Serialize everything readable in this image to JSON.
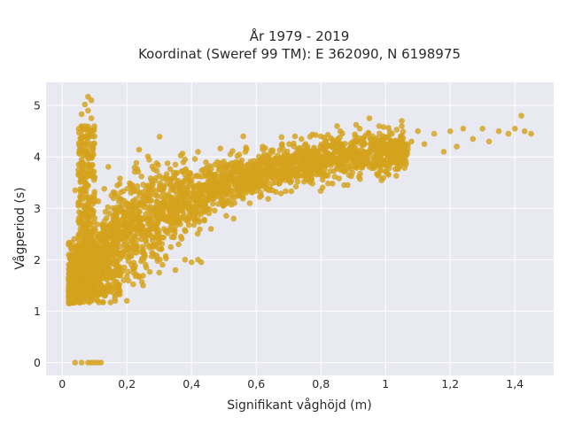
{
  "chart_data": {
    "type": "scatter",
    "title_line1": "År 1979 - 2019",
    "title_line2": "Koordinat (Sweref 99 TM): E 362090, N 6198975",
    "xlabel": "Signifikant våghöjd (m)",
    "ylabel": "Vågperiod (s)",
    "xlim": [
      -0.05,
      1.52
    ],
    "ylim": [
      -0.25,
      5.45
    ],
    "x_ticks": [
      0,
      0.2,
      0.4,
      0.6,
      0.8,
      1,
      1.2,
      1.4
    ],
    "x_tick_labels": [
      "0",
      "0,2",
      "0,4",
      "0,6",
      "0,8",
      "1",
      "1,2",
      "1,4"
    ],
    "y_ticks": [
      0,
      1,
      2,
      3,
      4,
      5
    ],
    "y_tick_labels": [
      "0",
      "1",
      "2",
      "3",
      "4",
      "5"
    ],
    "grid": true,
    "marker_color": "#d4a21c",
    "plot_background": "#e9e9f1",
    "grid_color": "#ffffff",
    "points": [
      [
        0.04,
        0.0
      ],
      [
        0.06,
        0.0
      ],
      [
        0.08,
        0.0
      ],
      [
        0.09,
        0.0
      ],
      [
        0.1,
        0.0
      ],
      [
        0.12,
        0.0
      ],
      [
        0.11,
        0.0
      ],
      [
        0.08,
        5.17
      ],
      [
        0.09,
        5.1
      ],
      [
        0.07,
        5.02
      ],
      [
        0.08,
        4.9
      ],
      [
        0.06,
        4.83
      ],
      [
        0.09,
        4.75
      ],
      [
        0.07,
        4.6
      ],
      [
        0.08,
        4.45
      ],
      [
        0.06,
        4.35
      ],
      [
        0.09,
        4.25
      ],
      [
        0.07,
        4.1
      ],
      [
        0.06,
        3.95
      ],
      [
        0.08,
        3.8
      ],
      [
        0.05,
        3.65
      ],
      [
        0.07,
        3.5
      ],
      [
        0.06,
        3.35
      ],
      [
        0.08,
        3.2
      ],
      [
        0.05,
        3.05
      ],
      [
        0.07,
        2.9
      ],
      [
        0.06,
        2.75
      ],
      [
        0.09,
        2.55
      ],
      [
        0.05,
        2.4
      ],
      [
        0.07,
        2.25
      ],
      [
        0.04,
        3.35
      ],
      [
        0.05,
        3.1
      ],
      [
        0.06,
        4.2
      ],
      [
        0.09,
        4.0
      ],
      [
        0.1,
        3.6
      ],
      [
        0.1,
        4.4
      ],
      [
        0.02,
        1.6
      ],
      [
        0.02,
        1.45
      ],
      [
        0.03,
        1.25
      ],
      [
        0.04,
        1.75
      ],
      [
        0.03,
        1.55
      ],
      [
        0.05,
        1.3
      ],
      [
        0.05,
        1.95
      ],
      [
        0.06,
        2.2
      ],
      [
        0.07,
        1.4
      ],
      [
        0.08,
        1.2
      ],
      [
        0.08,
        1.7
      ],
      [
        0.09,
        2.0
      ],
      [
        0.1,
        1.35
      ],
      [
        0.1,
        2.3
      ],
      [
        0.11,
        1.55
      ],
      [
        0.12,
        1.9
      ],
      [
        0.12,
        2.5
      ],
      [
        0.13,
        1.3
      ],
      [
        0.14,
        1.65
      ],
      [
        0.15,
        2.15
      ],
      [
        0.15,
        2.7
      ],
      [
        0.16,
        1.45
      ],
      [
        0.17,
        1.8
      ],
      [
        0.18,
        2.4
      ],
      [
        0.18,
        2.95
      ],
      [
        0.19,
        1.6
      ],
      [
        0.2,
        2.05
      ],
      [
        0.2,
        3.1
      ],
      [
        0.21,
        2.5
      ],
      [
        0.22,
        1.75
      ],
      [
        0.23,
        2.8
      ],
      [
        0.24,
        3.3
      ],
      [
        0.25,
        2.2
      ],
      [
        0.26,
        1.85
      ],
      [
        0.27,
        2.6
      ],
      [
        0.28,
        3.45
      ],
      [
        0.29,
        2.95
      ],
      [
        0.3,
        2.4
      ],
      [
        0.31,
        1.9
      ],
      [
        0.32,
        3.6
      ],
      [
        0.33,
        3.1
      ],
      [
        0.34,
        2.7
      ],
      [
        0.35,
        3.85
      ],
      [
        0.36,
        2.3
      ],
      [
        0.37,
        3.3
      ],
      [
        0.38,
        2.0
      ],
      [
        0.38,
        3.95
      ],
      [
        0.4,
        3.5
      ],
      [
        0.41,
        2.9
      ],
      [
        0.42,
        4.1
      ],
      [
        0.43,
        1.95
      ],
      [
        0.44,
        3.7
      ],
      [
        0.45,
        3.2
      ],
      [
        0.46,
        2.6
      ],
      [
        0.48,
        3.9
      ],
      [
        0.5,
        3.4
      ],
      [
        0.52,
        4.05
      ],
      [
        0.53,
        2.8
      ],
      [
        0.55,
        3.6
      ],
      [
        0.57,
        4.15
      ],
      [
        0.58,
        3.1
      ],
      [
        0.6,
        3.75
      ],
      [
        0.62,
        4.2
      ],
      [
        0.64,
        3.35
      ],
      [
        0.66,
        3.9
      ],
      [
        0.68,
        4.25
      ],
      [
        0.7,
        3.55
      ],
      [
        0.72,
        4.05
      ],
      [
        0.74,
        4.35
      ],
      [
        0.76,
        3.7
      ],
      [
        0.78,
        4.15
      ],
      [
        0.8,
        4.4
      ],
      [
        0.82,
        3.85
      ],
      [
        0.84,
        4.25
      ],
      [
        0.86,
        4.5
      ],
      [
        0.88,
        3.95
      ],
      [
        0.9,
        4.3
      ],
      [
        0.92,
        4.55
      ],
      [
        0.94,
        4.05
      ],
      [
        0.96,
        4.4
      ],
      [
        0.98,
        4.6
      ],
      [
        1.0,
        4.2
      ],
      [
        1.02,
        4.45
      ],
      [
        1.05,
        4.7
      ],
      [
        1.08,
        4.3
      ],
      [
        1.1,
        4.5
      ],
      [
        1.12,
        4.25
      ],
      [
        1.15,
        4.45
      ],
      [
        1.18,
        4.1
      ],
      [
        1.2,
        4.5
      ],
      [
        1.22,
        4.2
      ],
      [
        1.24,
        4.55
      ],
      [
        1.27,
        4.35
      ],
      [
        1.3,
        4.55
      ],
      [
        1.32,
        4.3
      ],
      [
        1.35,
        4.5
      ],
      [
        1.38,
        4.45
      ],
      [
        1.4,
        4.55
      ],
      [
        1.42,
        4.8
      ],
      [
        1.43,
        4.5
      ],
      [
        1.45,
        4.45
      ],
      [
        0.2,
        1.2
      ],
      [
        0.25,
        1.5
      ],
      [
        0.3,
        1.75
      ],
      [
        0.35,
        1.8
      ],
      [
        0.4,
        1.95
      ],
      [
        0.42,
        2.0
      ],
      [
        0.56,
        4.4
      ],
      [
        0.62,
        4.15
      ],
      [
        0.72,
        4.4
      ],
      [
        0.85,
        4.6
      ],
      [
        0.95,
        4.75
      ],
      [
        1.05,
        4.6
      ]
    ]
  }
}
